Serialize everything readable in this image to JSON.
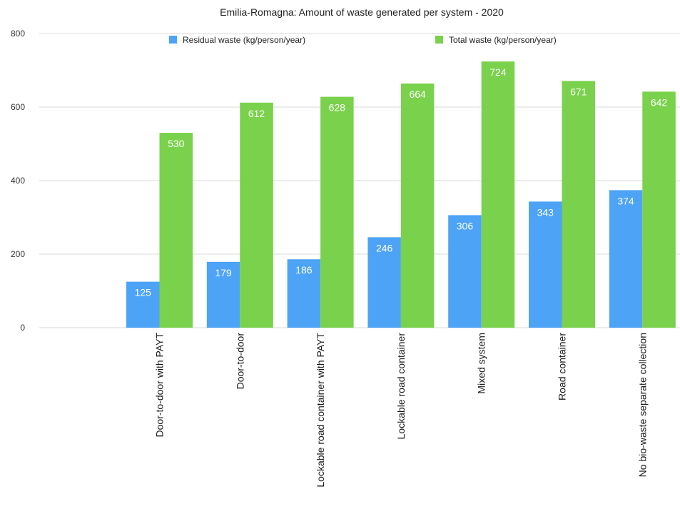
{
  "chart_data": {
    "type": "bar",
    "title": "Emilia-Romagna: Amount of waste generated per system - 2020",
    "xlabel": "",
    "ylabel": "",
    "ylim": [
      0,
      800
    ],
    "yticks": [
      0,
      200,
      400,
      600,
      800
    ],
    "grid": true,
    "legend_position": "top",
    "categories": [
      "Door-to-door with PAYT",
      "Door-to-door",
      "Lockable road container with PAYT",
      "Lockable road container",
      "Mixed system",
      "Road container",
      "No bio-waste separate collection"
    ],
    "series": [
      {
        "name": "Residual waste (kg/person/year)",
        "color": "#4da3f5",
        "values": [
          125,
          179,
          186,
          246,
          306,
          343,
          374
        ]
      },
      {
        "name": "Total waste (kg/person/year)",
        "color": "#7ad14b",
        "values": [
          530,
          612,
          628,
          664,
          724,
          671,
          642
        ]
      }
    ]
  }
}
